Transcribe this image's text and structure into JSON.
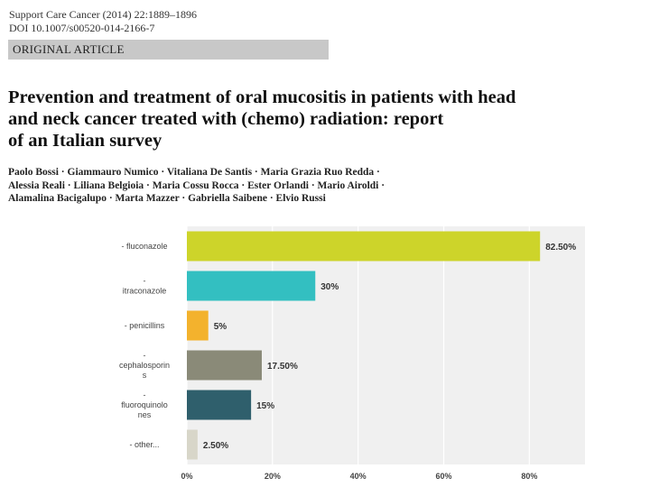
{
  "journal": {
    "line1": "Support Care Cancer (2014) 22:1889–1896",
    "line2": "DOI 10.1007/s00520-014-2166-7"
  },
  "article_type": "ORIGINAL ARTICLE",
  "title_lines": [
    "Prevention and treatment of oral mucositis in patients with head",
    "and neck cancer treated with (chemo) radiation: report",
    "of an Italian survey"
  ],
  "author_lines": [
    "Paolo Bossi · Giammauro Numico · Vitaliana De Santis · Maria Grazia Ruo Redda ·",
    "Alessia Reali · Liliana Belgioia · Maria Cossu Rocca · Ester Orlandi · Mario Airoldi ·",
    "Alamalina Bacigalupo · Marta Mazzer · Gabriella Saibene · Elvio Russi"
  ],
  "colors": {
    "fluconazole": "#cdd42a",
    "itraconazole": "#33bfc1",
    "penicillins": "#f3b22d",
    "cephalosporins": "#8a8a78",
    "fluoroquinolones": "#2f5f6c",
    "other": "#d8d6c9",
    "plot_bg": "#f0f0f0",
    "grid": "#ffffff"
  },
  "chart_data": {
    "type": "bar",
    "orientation": "horizontal",
    "categories": [
      [
        "- fluconazole"
      ],
      [
        "-",
        "itraconazole"
      ],
      [
        "- penicillins"
      ],
      [
        "-",
        "cephalosporin",
        "s"
      ],
      [
        "-",
        "fluoroquinolo",
        "nes"
      ],
      [
        "- other..."
      ]
    ],
    "values": [
      82.5,
      30,
      5,
      17.5,
      15,
      2.5
    ],
    "value_labels": [
      "82.50%",
      "30%",
      "5%",
      "17.50%",
      "15%",
      "2.50%"
    ],
    "xticks": [
      0,
      20,
      40,
      60,
      80
    ],
    "xtick_labels": [
      "0%",
      "20%",
      "40%",
      "60%",
      "80%"
    ],
    "xlim": [
      0,
      93
    ],
    "title": "",
    "xlabel": "",
    "ylabel": ""
  }
}
